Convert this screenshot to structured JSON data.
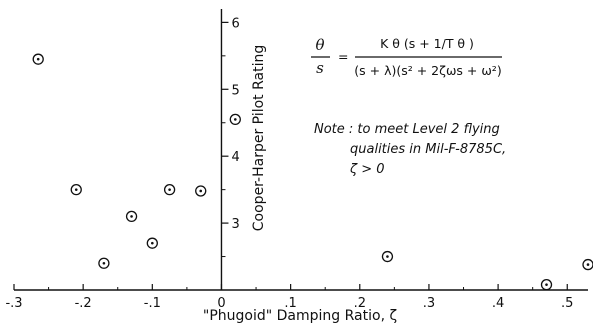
{
  "chart_data": {
    "type": "scatter",
    "xlabel": "\"Phugoid\" Damping Ratio, ζ",
    "ylabel": "Cooper-Harper Pilot Rating",
    "xlim": [
      -0.3,
      0.53
    ],
    "ylim": [
      2.0,
      6.2
    ],
    "x_ticks": [
      -0.3,
      -0.2,
      -0.1,
      0.0,
      0.1,
      0.2,
      0.3,
      0.4,
      0.5
    ],
    "x_tick_labels": [
      "-.3",
      "-.2",
      "-.1",
      "0",
      ".1",
      ".2",
      ".3",
      ".4",
      ".5"
    ],
    "y_ticks": [
      3,
      4,
      5,
      6
    ],
    "y_tick_labels": [
      "3",
      "4",
      "5",
      "6"
    ],
    "marker": "circle-dot",
    "points": [
      {
        "x": -0.265,
        "y": 5.45
      },
      {
        "x": -0.21,
        "y": 3.5
      },
      {
        "x": -0.17,
        "y": 2.4
      },
      {
        "x": -0.13,
        "y": 3.1
      },
      {
        "x": -0.1,
        "y": 2.7
      },
      {
        "x": -0.075,
        "y": 3.5
      },
      {
        "x": -0.03,
        "y": 3.48
      },
      {
        "x": 0.02,
        "y": 4.55
      },
      {
        "x": 0.24,
        "y": 2.5
      },
      {
        "x": 0.47,
        "y": 2.08
      },
      {
        "x": 0.53,
        "y": 2.38
      }
    ],
    "annotations": {
      "equation_lhs_num": "θ",
      "equation_lhs_den": "s",
      "equation_rhs_num": "K θ (s + 1/T θ )",
      "equation_rhs_den": "(s + λ)(s² + 2ζωs + ω²)",
      "note_line1": "Note : to meet Level 2 flying",
      "note_line2": "qualities in Mil-F-8785C,",
      "note_line3": "ζ > 0"
    }
  }
}
